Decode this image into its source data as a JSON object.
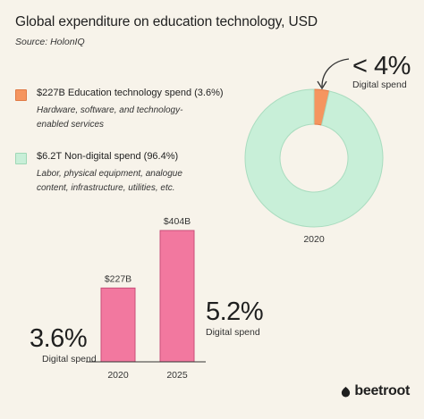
{
  "header": {
    "title": "Global expenditure on education technology, USD",
    "source": "Source: HolonIQ"
  },
  "legend": [
    {
      "label": "$227B Education technology spend (3.6%)",
      "description": "Hardware, software, and technology-enabled services",
      "color": "#f5955f"
    },
    {
      "label": "$6.2T Non-digital spend (96.4%)",
      "description": "Labor, physical equipment, analogue content, infrastructure, utilities, etc.",
      "color": "#c8efd8"
    }
  ],
  "donut": {
    "callout_pct": "< 4%",
    "callout_label": "Digital spend",
    "year_label": "2020"
  },
  "bars_annotations": {
    "left_pct": "3.6%",
    "left_label": "Digital spend",
    "right_pct": "5.2%",
    "right_label": "Digital spend"
  },
  "brand": {
    "name": "beetroot"
  },
  "chart_data": [
    {
      "type": "pie",
      "style": "donut",
      "title": "2020",
      "slices": [
        {
          "label": "Education technology spend",
          "value": 3.6,
          "color": "#f5955f"
        },
        {
          "label": "Non-digital spend",
          "value": 96.4,
          "color": "#c8efd8"
        }
      ]
    },
    {
      "type": "bar",
      "categories": [
        "2020",
        "2025"
      ],
      "values": [
        227,
        404
      ],
      "data_labels": [
        "$227B",
        "$404B"
      ],
      "ylim": [
        0,
        404
      ],
      "bar_color": "#f2789f",
      "grid": false
    }
  ]
}
